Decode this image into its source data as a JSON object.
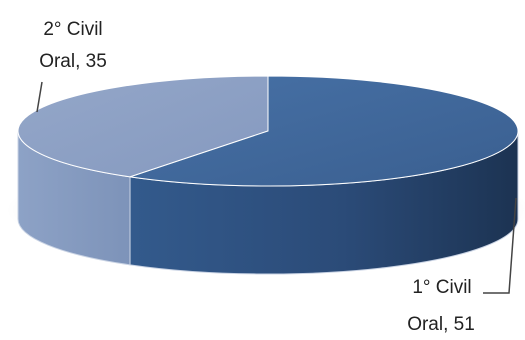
{
  "chart_data": {
    "type": "pie",
    "style": "3d",
    "categories": [
      "1° Civil Oral",
      "2° Civil Oral"
    ],
    "values": [
      51,
      35
    ],
    "colors": [
      "#3f6598",
      "#8a9fc5"
    ],
    "labels": [
      {
        "line1": "1° Civil",
        "line2": "Oral, 51"
      },
      {
        "line1": "2° Civil",
        "line2": "Oral, 35"
      }
    ],
    "legend": "none"
  }
}
